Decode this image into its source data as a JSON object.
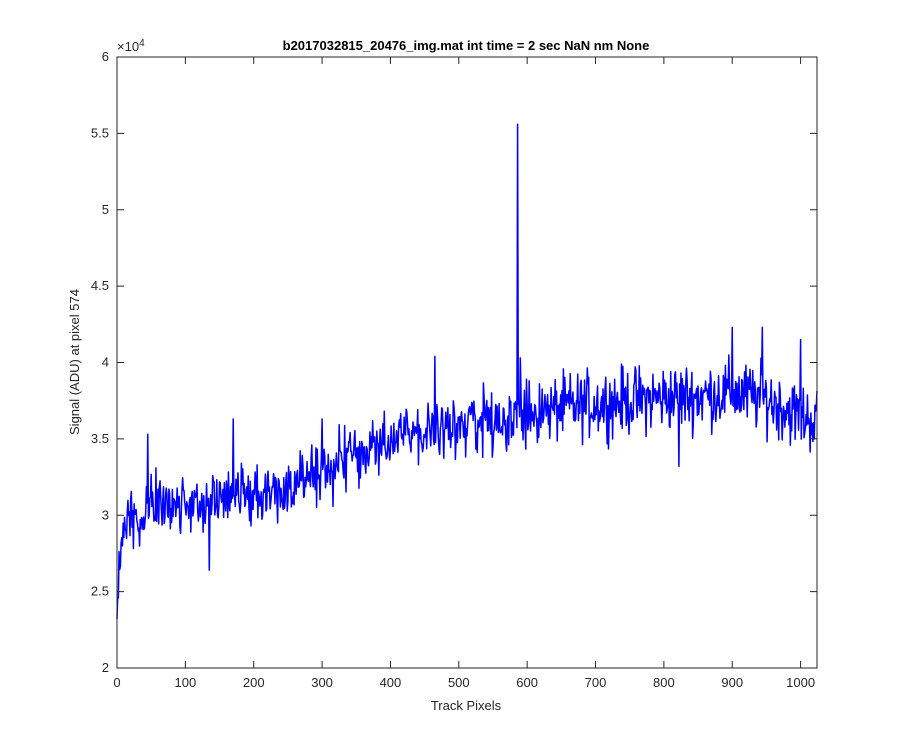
{
  "chart_data": {
    "type": "line",
    "title": "b2017032815_20476_img.mat int time = 2 sec  NaN nm None",
    "xlabel": "Track Pixels",
    "ylabel": "Signal (ADU) at pixel 574",
    "xlim": [
      0,
      1024
    ],
    "ylim": [
      20000,
      60000
    ],
    "y_exponent_label": "×10",
    "y_exponent_power": "4",
    "xticks": [
      0,
      100,
      200,
      300,
      400,
      500,
      600,
      700,
      800,
      900,
      1000
    ],
    "xtick_labels": [
      "0",
      "100",
      "200",
      "300",
      "400",
      "500",
      "600",
      "700",
      "800",
      "900",
      "1000"
    ],
    "yticks": [
      20000,
      25000,
      30000,
      35000,
      40000,
      45000,
      50000,
      55000,
      60000
    ],
    "ytick_labels": [
      "2",
      "2.5",
      "3",
      "3.5",
      "4",
      "4.5",
      "5",
      "5.5",
      "6"
    ],
    "grid": false,
    "line_color": "#0000ff",
    "trend": {
      "x": [
        0,
        3,
        10,
        50,
        100,
        150,
        200,
        250,
        300,
        350,
        400,
        450,
        500,
        550,
        600,
        650,
        700,
        750,
        800,
        850,
        900,
        950,
        1000,
        1024
      ],
      "y": [
        23500,
        27000,
        29500,
        30700,
        30900,
        31000,
        31500,
        31800,
        33000,
        34000,
        34800,
        35500,
        36000,
        36300,
        36500,
        37000,
        37300,
        37500,
        37700,
        37800,
        38000,
        37600,
        36500,
        36200
      ]
    },
    "noise_amplitude": [
      {
        "x": [
          0,
          200
        ],
        "amplitude": 1800
      },
      {
        "x": [
          200,
          500
        ],
        "amplitude": 1900
      },
      {
        "x": [
          500,
          1024
        ],
        "amplitude": 2000
      }
    ],
    "notable_points": [
      {
        "x": 0,
        "y": 23200
      },
      {
        "x": 45,
        "y": 35300
      },
      {
        "x": 135,
        "y": 26400
      },
      {
        "x": 170,
        "y": 36300
      },
      {
        "x": 300,
        "y": 36300
      },
      {
        "x": 465,
        "y": 40400
      },
      {
        "x": 586,
        "y": 55600
      },
      {
        "x": 590,
        "y": 40300
      },
      {
        "x": 822,
        "y": 33200
      },
      {
        "x": 900,
        "y": 42300
      },
      {
        "x": 944,
        "y": 42300
      },
      {
        "x": 1000,
        "y": 41500
      }
    ],
    "series": [
      {
        "x_start": 1,
        "x_end": 1024,
        "color": "#0000ff"
      }
    ]
  }
}
